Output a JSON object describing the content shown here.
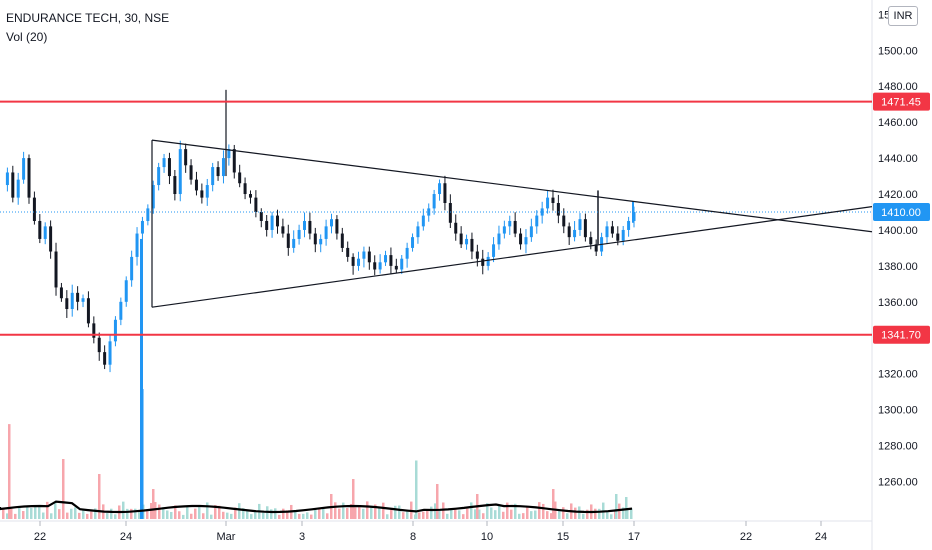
{
  "header": {
    "title": "ENDURANCE TECH, 30, NSE",
    "indicator": "Vol (20)"
  },
  "currency_button": "INR",
  "colors": {
    "up": "#2196f3",
    "down": "#131722",
    "level_line": "#f23645",
    "price_label": "#2196f3",
    "trendline": "#131722",
    "volume_up": "#f7a6ac",
    "volume_down": "#a8dbd6",
    "volume_ma": "#000000"
  },
  "chart_data": {
    "type": "candlestick",
    "y_axis": {
      "range": [
        1238,
        1528
      ],
      "ticks": [
        "1500.00",
        "1480.00",
        "1460.00",
        "1440.00",
        "1420.00",
        "1400.00",
        "1380.00",
        "1360.00",
        "1340.00",
        "1320.00",
        "1300.00",
        "1280.00",
        "1260.00"
      ],
      "partial_top_tick": "1520.00"
    },
    "x_axis": {
      "ticks": [
        "22",
        "24",
        "Mar",
        "3",
        "8",
        "10",
        "15",
        "17",
        "22",
        "24"
      ]
    },
    "horizontal_levels": [
      {
        "value": 1471.45,
        "label": "1471.45"
      },
      {
        "value": 1341.7,
        "label": "1341.70"
      }
    ],
    "last_price": {
      "value": 1410.0,
      "label": "1410.00"
    },
    "triangle_pattern": {
      "upper_line": {
        "start": {
          "x": "Feb 25",
          "y": 1450
        },
        "end": {
          "x": "Mar 26",
          "y": 1399
        }
      },
      "lower_line": {
        "start": {
          "x": "Feb 25",
          "y": 1357
        },
        "end": {
          "x": "Mar 26",
          "y": 1413
        }
      },
      "left_edge": {
        "x": "Feb 25",
        "y_top": 1450,
        "y_bottom": 1357
      }
    },
    "price_path": [
      1425,
      1432,
      1418,
      1428,
      1440,
      1418,
      1405,
      1395,
      1402,
      1388,
      1368,
      1362,
      1356,
      1365,
      1360,
      1362,
      1348,
      1340,
      1332,
      1325,
      1338,
      1350,
      1360,
      1372,
      1385,
      1398,
      1405,
      1412,
      1425,
      1435,
      1440,
      1430,
      1420,
      1445,
      1436,
      1428,
      1422,
      1418,
      1425,
      1435,
      1430,
      1440,
      1445,
      1432,
      1426,
      1420,
      1418,
      1410,
      1405,
      1400,
      1408,
      1402,
      1398,
      1390,
      1395,
      1400,
      1405,
      1398,
      1392,
      1395,
      1402,
      1406,
      1398,
      1390,
      1385,
      1380,
      1384,
      1388,
      1382,
      1378,
      1382,
      1386,
      1380,
      1378,
      1384,
      1390,
      1396,
      1402,
      1408,
      1412,
      1420,
      1426,
      1415,
      1404,
      1398,
      1392,
      1395,
      1388,
      1384,
      1380,
      1385,
      1392,
      1398,
      1402,
      1405,
      1398,
      1392,
      1396,
      1402,
      1408,
      1412,
      1418,
      1415,
      1408,
      1402,
      1396,
      1400,
      1406,
      1396,
      1392,
      1388,
      1396,
      1402,
      1398,
      1394,
      1400,
      1405,
      1410
    ],
    "volume_spikes": [
      {
        "x": "Feb 19",
        "color": "up",
        "relative": 0.73
      },
      {
        "x": "Feb 25",
        "color": "up_blue",
        "relative": 1.0
      },
      {
        "x": "Mar 8",
        "color": "down",
        "relative": 0.45
      }
    ],
    "volume_ma": "approximately flat"
  }
}
